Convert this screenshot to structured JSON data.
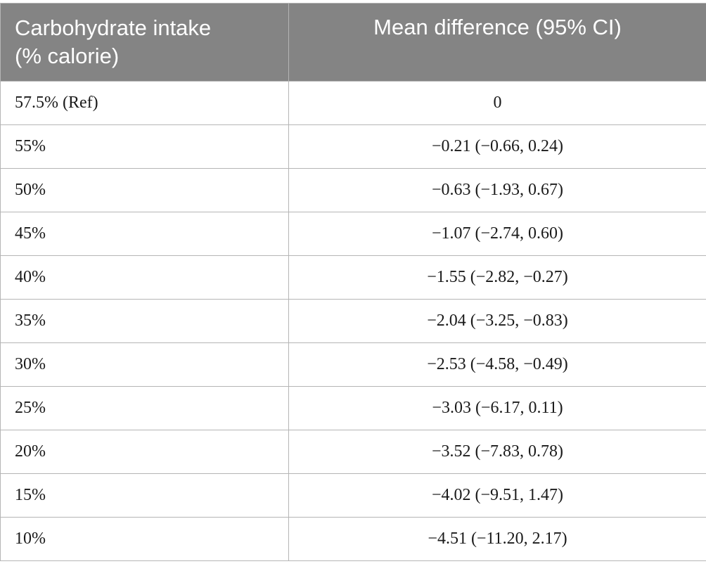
{
  "table": {
    "headers": {
      "col1_line1": "Carbohydrate intake",
      "col1_line2": "(% calorie)",
      "col2": "Mean difference (95% CI)"
    },
    "rows": [
      {
        "intake": "57.5% (Ref)",
        "value": "0"
      },
      {
        "intake": "55%",
        "value": "−0.21 (−0.66, 0.24)"
      },
      {
        "intake": "50%",
        "value": "−0.63 (−1.93, 0.67)"
      },
      {
        "intake": "45%",
        "value": "−1.07 (−2.74, 0.60)"
      },
      {
        "intake": "40%",
        "value": "−1.55 (−2.82, −0.27)"
      },
      {
        "intake": "35%",
        "value": "−2.04 (−3.25, −0.83)"
      },
      {
        "intake": "30%",
        "value": "−2.53 (−4.58, −0.49)"
      },
      {
        "intake": "25%",
        "value": "−3.03 (−6.17, 0.11)"
      },
      {
        "intake": "20%",
        "value": "−3.52 (−7.83, 0.78)"
      },
      {
        "intake": "15%",
        "value": "−4.02 (−9.51, 1.47)"
      },
      {
        "intake": "10%",
        "value": "−4.51 (−11.20, 2.17)"
      }
    ]
  }
}
